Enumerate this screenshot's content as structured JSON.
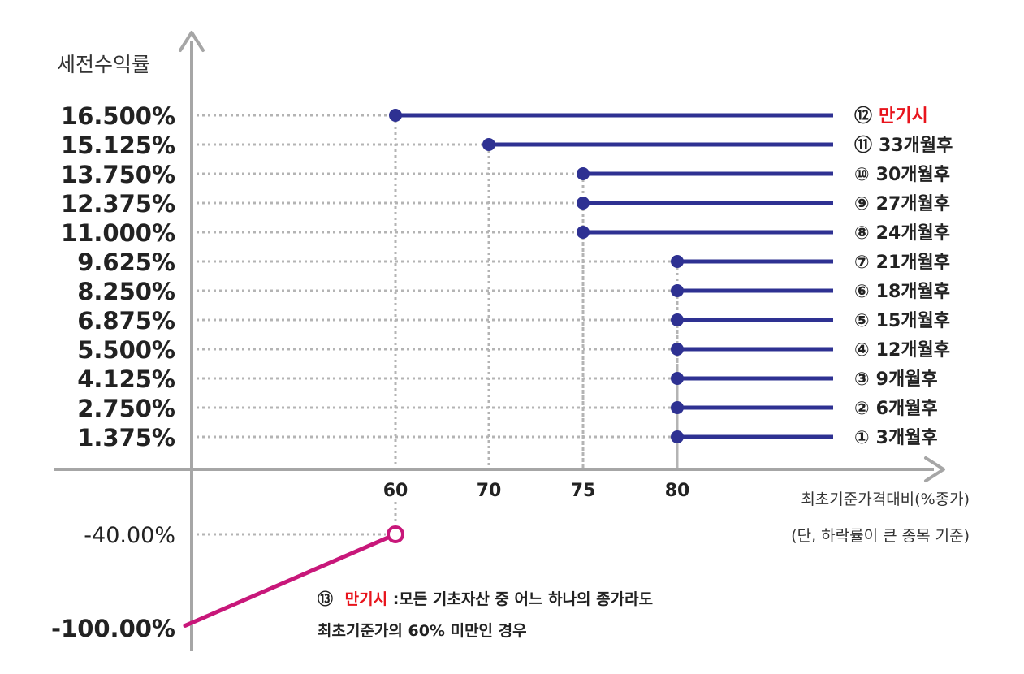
{
  "chart_data": {
    "type": "line",
    "ylabel": "세전수익률",
    "xlabel": "최초기준가격대비(%종가)",
    "xlabel_note": "(단, 하락률이 큰 종목 기준)",
    "x_ticks": [
      "60",
      "70",
      "75",
      "80"
    ],
    "x_range": [
      0,
      100
    ],
    "series": [
      {
        "label": "⑫ 만기시",
        "label_num": "⑫",
        "label_text": "만기시",
        "highlight": true,
        "y": 16.5,
        "y_label": "16.500%",
        "x_start": 60
      },
      {
        "label": "⑪ 33개월후",
        "label_num": "⑪",
        "label_text": "33개월후",
        "y": 15.125,
        "y_label": "15.125%",
        "x_start": 70
      },
      {
        "label": "⑩ 30개월후",
        "label_num": "⑩",
        "label_text": "30개월후",
        "y": 13.75,
        "y_label": "13.750%",
        "x_start": 75
      },
      {
        "label": "⑨ 27개월후",
        "label_num": "⑨",
        "label_text": "27개월후",
        "y": 12.375,
        "y_label": "12.375%",
        "x_start": 75
      },
      {
        "label": "⑧ 24개월후",
        "label_num": "⑧",
        "label_text": "24개월후",
        "y": 11.0,
        "y_label": "11.000%",
        "x_start": 75
      },
      {
        "label": "⑦ 21개월후",
        "label_num": "⑦",
        "label_text": "21개월후",
        "y": 9.625,
        "y_label": "9.625%",
        "x_start": 80
      },
      {
        "label": "⑥ 18개월후",
        "label_num": "⑥",
        "label_text": "18개월후",
        "y": 8.25,
        "y_label": "8.250%",
        "x_start": 80
      },
      {
        "label": "⑤ 15개월후",
        "label_num": "⑤",
        "label_text": "15개월후",
        "y": 6.875,
        "y_label": "6.875%",
        "x_start": 80
      },
      {
        "label": "④ 12개월후",
        "label_num": "④",
        "label_text": "12개월후",
        "y": 5.5,
        "y_label": "5.500%",
        "x_start": 80
      },
      {
        "label": "③ 9개월후",
        "label_num": "③",
        "label_text": "9개월후",
        "y": 4.125,
        "y_label": "4.125%",
        "x_start": 80
      },
      {
        "label": "② 6개월후",
        "label_num": "②",
        "label_text": "6개월후",
        "y": 2.75,
        "y_label": "2.750%",
        "x_start": 80
      },
      {
        "label": "① 3개월후",
        "label_num": "①",
        "label_text": "3개월후",
        "y": 1.375,
        "y_label": "1.375%",
        "x_start": 80
      }
    ],
    "loss_line": {
      "points": [
        {
          "x": 0,
          "y": -100.0
        },
        {
          "x": 60,
          "y": -40.0
        }
      ],
      "y_labels": [
        "-40.00%",
        "-100.00%"
      ]
    },
    "annotation": {
      "num": "⑬",
      "red_text": "만기시",
      "line1": ":모든 기초자산 중 어느 하나의 종가라도",
      "line2": "최초기준가의 60% 미만인 경우"
    },
    "colors": {
      "series": "#2e3192",
      "loss": "#c8177a",
      "highlight": "#e8141c",
      "axis": "#a6a6a6",
      "grid": "#b4b4b4"
    }
  }
}
